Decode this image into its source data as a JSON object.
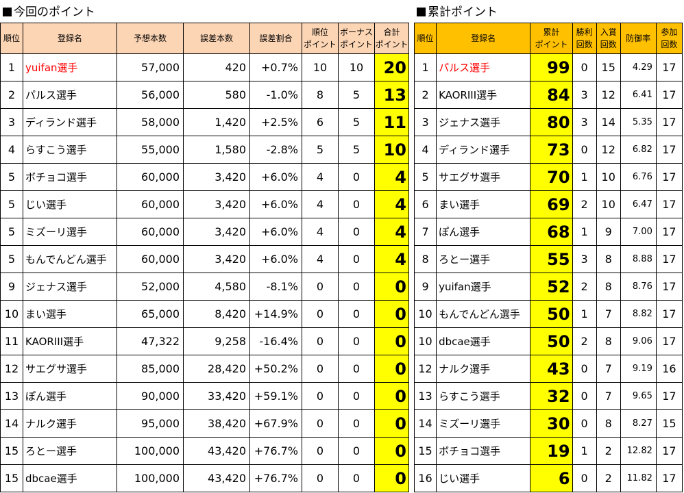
{
  "left": {
    "title": "今回のポイント",
    "headers": [
      "順位",
      "登録名",
      "予想本数",
      "誤差本数",
      "誤差割合",
      "順位\nポイント",
      "ボーナス\nポイント",
      "合計\nポイント"
    ],
    "rows": [
      {
        "rank": "1",
        "name": "yuifan選手",
        "forecast": "57,000",
        "error": "420",
        "ratio": "+0.7%",
        "rank_pt": "10",
        "bonus_pt": "10",
        "total": "20",
        "highlight": true
      },
      {
        "rank": "2",
        "name": "パルス選手",
        "forecast": "56,000",
        "error": "580",
        "ratio": "-1.0%",
        "rank_pt": "8",
        "bonus_pt": "5",
        "total": "13"
      },
      {
        "rank": "3",
        "name": "ディランド選手",
        "forecast": "58,000",
        "error": "1,420",
        "ratio": "+2.5%",
        "rank_pt": "6",
        "bonus_pt": "5",
        "total": "11"
      },
      {
        "rank": "4",
        "name": "らすこう選手",
        "forecast": "55,000",
        "error": "1,580",
        "ratio": "-2.8%",
        "rank_pt": "5",
        "bonus_pt": "5",
        "total": "10"
      },
      {
        "rank": "5",
        "name": "ボチョコ選手",
        "forecast": "60,000",
        "error": "3,420",
        "ratio": "+6.0%",
        "rank_pt": "4",
        "bonus_pt": "0",
        "total": "4"
      },
      {
        "rank": "5",
        "name": "じい選手",
        "forecast": "60,000",
        "error": "3,420",
        "ratio": "+6.0%",
        "rank_pt": "4",
        "bonus_pt": "0",
        "total": "4"
      },
      {
        "rank": "5",
        "name": "ミズーリ選手",
        "forecast": "60,000",
        "error": "3,420",
        "ratio": "+6.0%",
        "rank_pt": "4",
        "bonus_pt": "0",
        "total": "4"
      },
      {
        "rank": "5",
        "name": "もんでんどん選手",
        "forecast": "60,000",
        "error": "3,420",
        "ratio": "+6.0%",
        "rank_pt": "4",
        "bonus_pt": "0",
        "total": "4"
      },
      {
        "rank": "9",
        "name": "ジェナス選手",
        "forecast": "52,000",
        "error": "4,580",
        "ratio": "-8.1%",
        "rank_pt": "0",
        "bonus_pt": "0",
        "total": "0"
      },
      {
        "rank": "10",
        "name": "まい選手",
        "forecast": "65,000",
        "error": "8,420",
        "ratio": "+14.9%",
        "rank_pt": "0",
        "bonus_pt": "0",
        "total": "0"
      },
      {
        "rank": "11",
        "name": "KAORIII選手",
        "forecast": "47,322",
        "error": "9,258",
        "ratio": "-16.4%",
        "rank_pt": "0",
        "bonus_pt": "0",
        "total": "0"
      },
      {
        "rank": "12",
        "name": "サエグサ選手",
        "forecast": "85,000",
        "error": "28,420",
        "ratio": "+50.2%",
        "rank_pt": "0",
        "bonus_pt": "0",
        "total": "0"
      },
      {
        "rank": "13",
        "name": "ぽん選手",
        "forecast": "90,000",
        "error": "33,420",
        "ratio": "+59.1%",
        "rank_pt": "0",
        "bonus_pt": "0",
        "total": "0"
      },
      {
        "rank": "14",
        "name": "ナルク選手",
        "forecast": "95,000",
        "error": "38,420",
        "ratio": "+67.9%",
        "rank_pt": "0",
        "bonus_pt": "0",
        "total": "0"
      },
      {
        "rank": "15",
        "name": "ろとー選手",
        "forecast": "100,000",
        "error": "43,420",
        "ratio": "+76.7%",
        "rank_pt": "0",
        "bonus_pt": "0",
        "total": "0"
      },
      {
        "rank": "15",
        "name": "dbcae選手",
        "forecast": "100,000",
        "error": "43,420",
        "ratio": "+76.7%",
        "rank_pt": "0",
        "bonus_pt": "0",
        "total": "0"
      }
    ]
  },
  "right": {
    "title": "累計ポイント",
    "headers": [
      "順位",
      "登録名",
      "累計\nポイント",
      "勝利\n回数",
      "入賞\n回数",
      "防御率",
      "参加\n回数"
    ],
    "rows": [
      {
        "rank": "1",
        "name": "パルス選手",
        "points": "99",
        "wins": "0",
        "places": "15",
        "era": "4.29",
        "entries": "17",
        "highlight": true
      },
      {
        "rank": "2",
        "name": "KAORIII選手",
        "points": "84",
        "wins": "3",
        "places": "12",
        "era": "6.41",
        "entries": "17"
      },
      {
        "rank": "3",
        "name": "ジェナス選手",
        "points": "80",
        "wins": "3",
        "places": "14",
        "era": "5.35",
        "entries": "17"
      },
      {
        "rank": "4",
        "name": "ディランド選手",
        "points": "73",
        "wins": "0",
        "places": "12",
        "era": "6.82",
        "entries": "17"
      },
      {
        "rank": "5",
        "name": "サエグサ選手",
        "points": "70",
        "wins": "1",
        "places": "10",
        "era": "6.76",
        "entries": "17"
      },
      {
        "rank": "6",
        "name": "まい選手",
        "points": "69",
        "wins": "2",
        "places": "10",
        "era": "6.47",
        "entries": "17"
      },
      {
        "rank": "7",
        "name": "ぽん選手",
        "points": "68",
        "wins": "1",
        "places": "9",
        "era": "7.00",
        "entries": "17"
      },
      {
        "rank": "8",
        "name": "ろとー選手",
        "points": "55",
        "wins": "3",
        "places": "8",
        "era": "8.88",
        "entries": "17"
      },
      {
        "rank": "9",
        "name": "yuifan選手",
        "points": "52",
        "wins": "2",
        "places": "8",
        "era": "8.76",
        "entries": "17"
      },
      {
        "rank": "10",
        "name": "もんでんどん選手",
        "points": "50",
        "wins": "1",
        "places": "7",
        "era": "8.82",
        "entries": "17"
      },
      {
        "rank": "10",
        "name": "dbcae選手",
        "points": "50",
        "wins": "2",
        "places": "8",
        "era": "9.06",
        "entries": "17"
      },
      {
        "rank": "12",
        "name": "ナルク選手",
        "points": "43",
        "wins": "0",
        "places": "7",
        "era": "9.19",
        "entries": "16"
      },
      {
        "rank": "13",
        "name": "らすこう選手",
        "points": "32",
        "wins": "0",
        "places": "7",
        "era": "9.65",
        "entries": "17"
      },
      {
        "rank": "14",
        "name": "ミズーリ選手",
        "points": "30",
        "wins": "0",
        "places": "8",
        "era": "8.27",
        "entries": "15"
      },
      {
        "rank": "15",
        "name": "ボチョコ選手",
        "points": "19",
        "wins": "1",
        "places": "2",
        "era": "12.82",
        "entries": "17"
      },
      {
        "rank": "16",
        "name": "じい選手",
        "points": "6",
        "wins": "0",
        "places": "2",
        "era": "11.82",
        "entries": "17"
      }
    ]
  },
  "colors": {
    "left_header": "#fcd5b4",
    "right_header": "#ffc000",
    "total_cell": "#ffff00",
    "highlight_text": "#ff0000"
  }
}
